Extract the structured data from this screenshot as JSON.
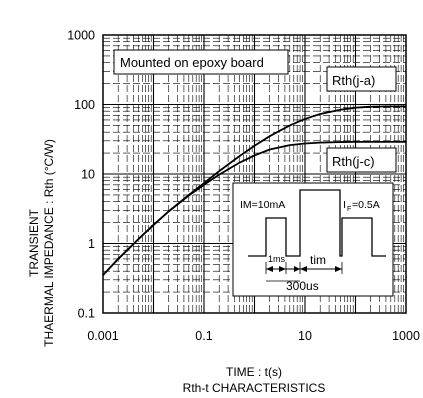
{
  "chart_data": {
    "type": "line",
    "x_scale": "log",
    "y_scale": "log",
    "xlim": [
      0.001,
      1000
    ],
    "ylim": [
      0.1,
      1000
    ],
    "x_ticks": [
      "0.001",
      "0.1",
      "10",
      "1000"
    ],
    "y_ticks": [
      "0.1",
      "1",
      "10",
      "100",
      "1000"
    ],
    "ylabel_line1": "TRANSIENT",
    "ylabel_line2": "THAERMAL IMPEDANCE : Rth (°C/W)",
    "xlabel": "TIME : t(s)",
    "caption": "Rth-t CHARACTERISTICS",
    "grid": true,
    "series": [
      {
        "name": "Rth(j-a)",
        "x": [
          0.001,
          0.002,
          0.005,
          0.01,
          0.02,
          0.05,
          0.1,
          0.2,
          0.5,
          1,
          2,
          5,
          10,
          20,
          50,
          100,
          200,
          500,
          1000
        ],
        "y": [
          0.35,
          0.6,
          1.15,
          1.85,
          2.9,
          5.0,
          7.4,
          11.0,
          18.0,
          25.5,
          35.0,
          50.0,
          62.0,
          73.0,
          84.0,
          90.0,
          93.0,
          94.0,
          94.0
        ]
      },
      {
        "name": "Rth(j-c)",
        "x": [
          0.001,
          0.002,
          0.005,
          0.01,
          0.02,
          0.05,
          0.1,
          0.2,
          0.5,
          1,
          2,
          5,
          10,
          20,
          50,
          100,
          200,
          500,
          1000
        ],
        "y": [
          0.35,
          0.6,
          1.15,
          1.85,
          2.9,
          4.9,
          7.0,
          9.8,
          14.5,
          18.5,
          22.5,
          26.0,
          27.5,
          28.3,
          28.8,
          29.0,
          29.0,
          29.0,
          29.0
        ]
      }
    ],
    "annotations": {
      "mounted": "Mounted on epoxy board",
      "label_ja": "Rth(j-a)",
      "label_jc": "Rth(j-c)"
    },
    "inset": {
      "im_label": "IM=10mA",
      "if_label_main": "I",
      "if_label_sub": "F",
      "if_label_tail": "=0.5A",
      "ms_label": "1ms",
      "tim_label": "tim",
      "us_label": "300us"
    }
  }
}
